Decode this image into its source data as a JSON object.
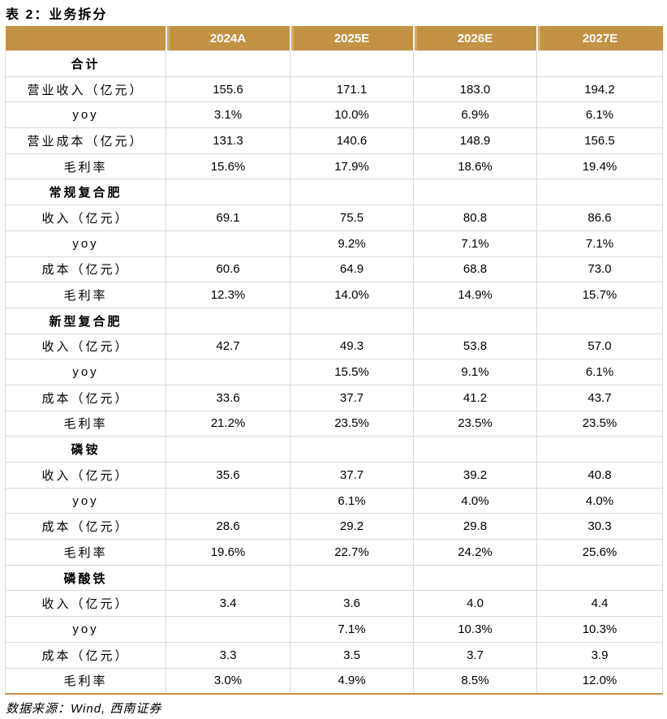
{
  "title": "表 2：业务拆分",
  "header": [
    "",
    "2024A",
    "2025E",
    "2026E",
    "2027E"
  ],
  "rows": [
    {
      "section": true,
      "label": "合计",
      "values": [
        "",
        "",
        "",
        ""
      ]
    },
    {
      "label": "营业收入（亿元）",
      "values": [
        "155.6",
        "171.1",
        "183.0",
        "194.2"
      ]
    },
    {
      "label": "yoy",
      "values": [
        "3.1%",
        "10.0%",
        "6.9%",
        "6.1%"
      ]
    },
    {
      "label": "营业成本（亿元）",
      "values": [
        "131.3",
        "140.6",
        "148.9",
        "156.5"
      ]
    },
    {
      "label": "毛利率",
      "values": [
        "15.6%",
        "17.9%",
        "18.6%",
        "19.4%"
      ]
    },
    {
      "section": true,
      "label": "常规复合肥",
      "values": [
        "",
        "",
        "",
        ""
      ]
    },
    {
      "label": "收入（亿元）",
      "values": [
        "69.1",
        "75.5",
        "80.8",
        "86.6"
      ]
    },
    {
      "label": "yoy",
      "values": [
        "",
        "9.2%",
        "7.1%",
        "7.1%"
      ]
    },
    {
      "label": "成本（亿元）",
      "values": [
        "60.6",
        "64.9",
        "68.8",
        "73.0"
      ]
    },
    {
      "label": "毛利率",
      "values": [
        "12.3%",
        "14.0%",
        "14.9%",
        "15.7%"
      ]
    },
    {
      "section": true,
      "label": "新型复合肥",
      "values": [
        "",
        "",
        "",
        ""
      ]
    },
    {
      "label": "收入（亿元）",
      "values": [
        "42.7",
        "49.3",
        "53.8",
        "57.0"
      ]
    },
    {
      "label": "yoy",
      "values": [
        "",
        "15.5%",
        "9.1%",
        "6.1%"
      ]
    },
    {
      "label": "成本（亿元）",
      "values": [
        "33.6",
        "37.7",
        "41.2",
        "43.7"
      ]
    },
    {
      "label": "毛利率",
      "values": [
        "21.2%",
        "23.5%",
        "23.5%",
        "23.5%"
      ]
    },
    {
      "section": true,
      "label": "磷铵",
      "values": [
        "",
        "",
        "",
        ""
      ]
    },
    {
      "label": "收入（亿元）",
      "values": [
        "35.6",
        "37.7",
        "39.2",
        "40.8"
      ]
    },
    {
      "label": "yoy",
      "values": [
        "",
        "6.1%",
        "4.0%",
        "4.0%"
      ]
    },
    {
      "label": "成本（亿元）",
      "values": [
        "28.6",
        "29.2",
        "29.8",
        "30.3"
      ]
    },
    {
      "label": "毛利率",
      "values": [
        "19.6%",
        "22.7%",
        "24.2%",
        "25.6%"
      ]
    },
    {
      "section": true,
      "label": "磷酸铁",
      "values": [
        "",
        "",
        "",
        ""
      ]
    },
    {
      "label": "收入（亿元）",
      "values": [
        "3.4",
        "3.6",
        "4.0",
        "4.4"
      ]
    },
    {
      "label": "yoy",
      "values": [
        "",
        "7.1%",
        "10.3%",
        "10.3%"
      ]
    },
    {
      "label": "成本（亿元）",
      "values": [
        "3.3",
        "3.5",
        "3.7",
        "3.9"
      ]
    },
    {
      "label": "毛利率",
      "values": [
        "3.0%",
        "4.9%",
        "8.5%",
        "12.0%"
      ]
    }
  ],
  "source": "数据来源：Wind, 西南证券",
  "colors": {
    "header_bg": "#c49244",
    "header_text": "#ffffff",
    "grid": "#d9d9d9"
  }
}
